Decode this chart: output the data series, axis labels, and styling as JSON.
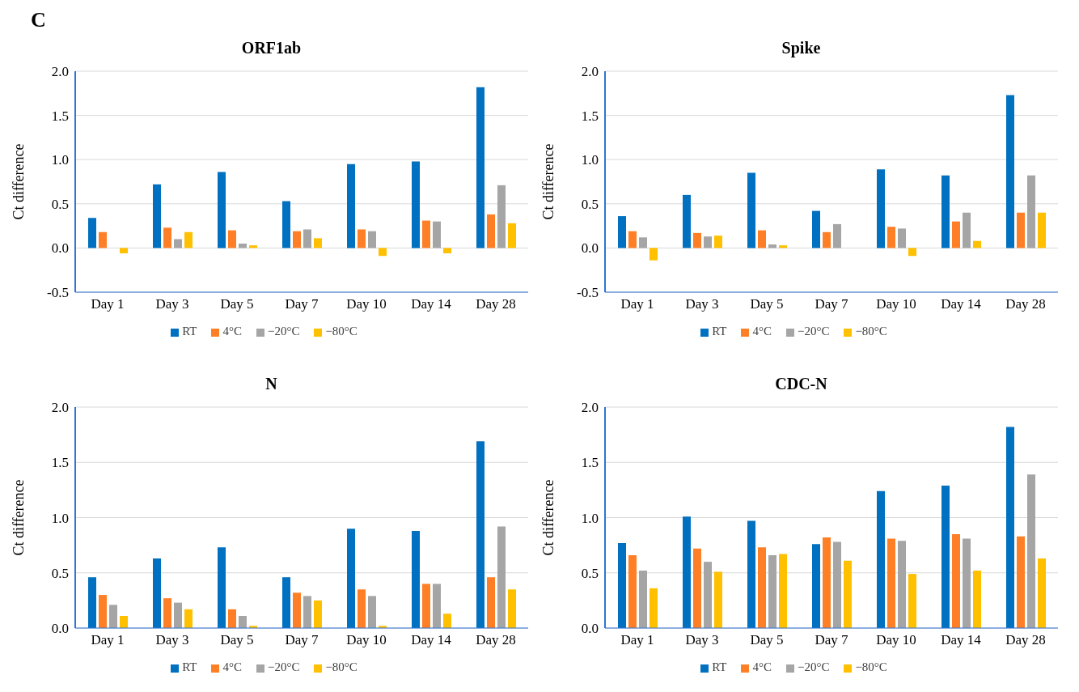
{
  "chart_data": [
    {
      "type": "bar",
      "title": "ORF1ab",
      "ylabel": "Ct difference",
      "annotations": [
        "C"
      ],
      "categories": [
        "Day 1",
        "Day 3",
        "Day 5",
        "Day 7",
        "Day 10",
        "Day 14",
        "Day 28"
      ],
      "series": [
        {
          "name": "RT",
          "color": "#0070c0",
          "values": [
            0.34,
            0.72,
            0.86,
            0.53,
            0.95,
            0.98,
            1.82
          ]
        },
        {
          "name": "4°C",
          "color": "#ff7f27",
          "values": [
            0.18,
            0.23,
            0.2,
            0.19,
            0.21,
            0.31,
            0.38
          ]
        },
        {
          "name": "−20°C",
          "color": "#a5a5a5",
          "values": [
            0,
            0.1,
            0.05,
            0.21,
            0.19,
            0.3,
            0.71
          ]
        },
        {
          "name": "−80°C",
          "color": "#ffc000",
          "values": [
            -0.06,
            0.18,
            0.03,
            0.11,
            -0.09,
            -0.06,
            0.28
          ]
        }
      ],
      "ylim": [
        -0.5,
        2
      ],
      "yticks": [
        {
          "value": -0.5,
          "label": "-0.5"
        },
        {
          "value": 0,
          "label": "0.0"
        },
        {
          "value": 0.5,
          "label": "0.5"
        },
        {
          "value": 1,
          "label": "1.0"
        },
        {
          "value": 1.5,
          "label": "1.5"
        },
        {
          "value": 2,
          "label": "2.0"
        }
      ],
      "grid": "y",
      "legend": "bottom"
    },
    {
      "type": "bar",
      "title": "Spike",
      "ylabel": "Ct difference",
      "categories": [
        "Day 1",
        "Day 3",
        "Day 5",
        "Day 7",
        "Day 10",
        "Day 14",
        "Day 28"
      ],
      "series": [
        {
          "name": "RT",
          "color": "#0070c0",
          "values": [
            0.36,
            0.6,
            0.85,
            0.42,
            0.89,
            0.82,
            1.73
          ]
        },
        {
          "name": "4°C",
          "color": "#ff7f27",
          "values": [
            0.19,
            0.17,
            0.2,
            0.18,
            0.24,
            0.3,
            0.4
          ]
        },
        {
          "name": "−20°C",
          "color": "#a5a5a5",
          "values": [
            0.12,
            0.13,
            0.04,
            0.27,
            0.22,
            0.4,
            0.82
          ]
        },
        {
          "name": "−80°C",
          "color": "#ffc000",
          "values": [
            -0.14,
            0.14,
            0.03,
            0,
            -0.09,
            0.08,
            0.4
          ]
        }
      ],
      "ylim": [
        -0.5,
        2
      ],
      "yticks": [
        {
          "value": -0.5,
          "label": "-0.5"
        },
        {
          "value": 0,
          "label": "0.0"
        },
        {
          "value": 0.5,
          "label": "0.5"
        },
        {
          "value": 1,
          "label": "1.0"
        },
        {
          "value": 1.5,
          "label": "1.5"
        },
        {
          "value": 2,
          "label": "2.0"
        }
      ],
      "grid": "y",
      "legend": "bottom"
    },
    {
      "type": "bar",
      "title": "N",
      "ylabel": "Ct difference",
      "categories": [
        "Day 1",
        "Day 3",
        "Day 5",
        "Day 7",
        "Day 10",
        "Day 14",
        "Day 28"
      ],
      "series": [
        {
          "name": "RT",
          "color": "#0070c0",
          "values": [
            0.46,
            0.63,
            0.73,
            0.46,
            0.9,
            0.88,
            1.69
          ]
        },
        {
          "name": "4°C",
          "color": "#ff7f27",
          "values": [
            0.3,
            0.27,
            0.17,
            0.32,
            0.35,
            0.4,
            0.46
          ]
        },
        {
          "name": "−20°C",
          "color": "#a5a5a5",
          "values": [
            0.21,
            0.23,
            0.11,
            0.29,
            0.29,
            0.4,
            0.92
          ]
        },
        {
          "name": "−80°C",
          "color": "#ffc000",
          "values": [
            0.11,
            0.17,
            0.02,
            0.25,
            0.02,
            0.13,
            0.35
          ]
        }
      ],
      "ylim": [
        0,
        2
      ],
      "yticks": [
        {
          "value": 0,
          "label": "0.0"
        },
        {
          "value": 0.5,
          "label": "0.5"
        },
        {
          "value": 1,
          "label": "1.0"
        },
        {
          "value": 1.5,
          "label": "1.5"
        },
        {
          "value": 2,
          "label": "2.0"
        }
      ],
      "grid": "y",
      "legend": "bottom"
    },
    {
      "type": "bar",
      "title": "CDC-N",
      "ylabel": "Ct difference",
      "categories": [
        "Day 1",
        "Day 3",
        "Day 5",
        "Day 7",
        "Day 10",
        "Day 14",
        "Day 28"
      ],
      "series": [
        {
          "name": "RT",
          "color": "#0070c0",
          "values": [
            0.77,
            1.01,
            0.97,
            0.76,
            1.24,
            1.29,
            1.82
          ]
        },
        {
          "name": "4°C",
          "color": "#ff7f27",
          "values": [
            0.66,
            0.72,
            0.73,
            0.82,
            0.81,
            0.85,
            0.83
          ]
        },
        {
          "name": "−20°C",
          "color": "#a5a5a5",
          "values": [
            0.52,
            0.6,
            0.66,
            0.78,
            0.79,
            0.81,
            1.39
          ]
        },
        {
          "name": "−80°C",
          "color": "#ffc000",
          "values": [
            0.36,
            0.51,
            0.67,
            0.61,
            0.49,
            0.52,
            0.63
          ]
        }
      ],
      "ylim": [
        0,
        2
      ],
      "yticks": [
        {
          "value": 0,
          "label": "0.0"
        },
        {
          "value": 0.5,
          "label": "0.5"
        },
        {
          "value": 1,
          "label": "1.0"
        },
        {
          "value": 1.5,
          "label": "1.5"
        },
        {
          "value": 2,
          "label": "2.0"
        }
      ],
      "grid": "y",
      "legend": "bottom"
    }
  ]
}
